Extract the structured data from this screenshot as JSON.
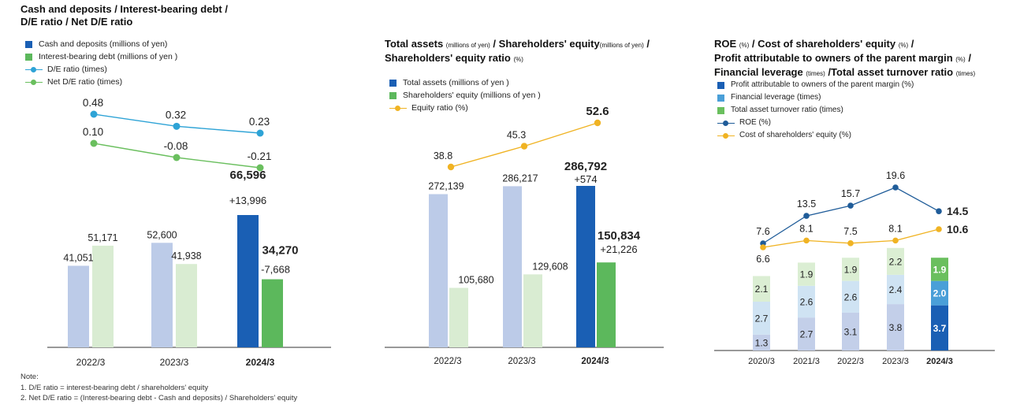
{
  "panel1": {
    "title_lines": [
      "Cash and deposits / Interest-bearing debt /",
      "D/E ratio / Net D/E ratio"
    ],
    "legend": [
      {
        "label": "Cash and deposits (millions of yen)",
        "kind": "bar",
        "color": "#1a5fb4"
      },
      {
        "label": "Interest-bearing debt (millions of yen )",
        "kind": "bar",
        "color": "#5cb85c"
      },
      {
        "label": "D/E ratio (times)",
        "kind": "line",
        "color": "#2ea3d6"
      },
      {
        "label": "Net D/E ratio (times)",
        "kind": "line",
        "color": "#6abf5e"
      }
    ],
    "notes": [
      "Note:",
      "1. D/E ratio = interest-bearing debt / shareholders' equity",
      "2. Net D/E ratio = (Interest-bearing debt - Cash and deposits) / Shareholders' equity"
    ]
  },
  "panel2": {
    "title_lines": [
      {
        "main": "Total assets ",
        "small": "(millions of yen)",
        "main2": " / Shareholders' equity",
        "small2": "(millions of yen)",
        "main3": " /"
      },
      {
        "main": "Shareholders' equity ratio ",
        "small": "(%)"
      }
    ],
    "legend": [
      {
        "label": "Total assets (millions of yen )",
        "kind": "bar",
        "color": "#1a5fb4"
      },
      {
        "label": "Shareholders' equity (millions of yen )",
        "kind": "bar",
        "color": "#5cb85c"
      },
      {
        "label": "Equity ratio (%)",
        "kind": "line",
        "color": "#f0b323"
      }
    ]
  },
  "panel3": {
    "title_lines": [
      {
        "main": "ROE ",
        "small": "(%)",
        "main2": " / Cost of shareholders' equity ",
        "small2": "(%)",
        "main3": " /"
      },
      {
        "main": "Profit attributable to owners of the parent margin ",
        "small": "(%)",
        "main2": " /"
      },
      {
        "main": "Financial leverage ",
        "small": "(times)",
        "main2": " /Total asset turnover ratio ",
        "small2": "(times)"
      }
    ],
    "legend": [
      {
        "label": "Profit attributable to owners of the parent margin (%)",
        "kind": "bar",
        "color": "#1a5fb4"
      },
      {
        "label": "Financial leverage (times)",
        "kind": "bar",
        "color": "#4a9fd8"
      },
      {
        "label": "Total asset turnover ratio (times)",
        "kind": "bar",
        "color": "#6abf5e"
      },
      {
        "label": "ROE (%)",
        "kind": "line",
        "color": "#1f5c99"
      },
      {
        "label": "Cost of shareholders' equity (%)",
        "kind": "line",
        "color": "#f0b323"
      }
    ]
  },
  "chart_data": [
    {
      "type": "bar",
      "categories": [
        "2022/3",
        "2023/3",
        "2024/3"
      ],
      "series": [
        {
          "name": "Cash and deposits (millions of yen)",
          "values": [
            41051,
            52600,
            66596
          ],
          "labels": [
            "41,051",
            "52,600",
            "66,596"
          ],
          "delta": [
            null,
            null,
            "+13,996"
          ]
        },
        {
          "name": "Interest-bearing debt (millions of yen )",
          "values": [
            51171,
            41938,
            34270
          ],
          "labels": [
            "51,171",
            "41,938",
            "34,270"
          ],
          "delta": [
            null,
            null,
            "-7,668"
          ]
        }
      ],
      "lines": [
        {
          "name": "D/E ratio (times)",
          "values": [
            0.48,
            0.32,
            0.23
          ],
          "labels": [
            "0.48",
            "0.32",
            "0.23"
          ]
        },
        {
          "name": "Net D/E ratio (times)",
          "values": [
            0.1,
            -0.08,
            -0.21
          ],
          "labels": [
            "0.10",
            "-0.08",
            "-0.21"
          ]
        }
      ]
    },
    {
      "type": "bar",
      "categories": [
        "2022/3",
        "2023/3",
        "2024/3"
      ],
      "series": [
        {
          "name": "Total assets (millions of yen )",
          "values": [
            272139,
            286217,
            286792
          ],
          "labels": [
            "272,139",
            "286,217",
            "286,792"
          ],
          "delta": [
            null,
            null,
            "+574"
          ]
        },
        {
          "name": "Shareholders' equity (millions of yen )",
          "values": [
            105680,
            129608,
            150834
          ],
          "labels": [
            "105,680",
            "129,608",
            "150,834"
          ],
          "delta": [
            null,
            null,
            "+21,226"
          ]
        }
      ],
      "lines": [
        {
          "name": "Equity ratio (%)",
          "values": [
            38.8,
            45.3,
            52.6
          ],
          "labels": [
            "38.8",
            "45.3",
            "52.6"
          ]
        }
      ]
    },
    {
      "type": "bar",
      "categories": [
        "2020/3",
        "2021/3",
        "2022/3",
        "2023/3",
        "2024/3"
      ],
      "stacked": true,
      "series": [
        {
          "name": "Profit attributable to owners of the parent margin (%)",
          "values": [
            1.3,
            2.7,
            3.1,
            3.8,
            3.7
          ],
          "labels": [
            "1.3",
            "2.7",
            "3.1",
            "3.8",
            "3.7"
          ]
        },
        {
          "name": "Financial leverage (times)",
          "values": [
            2.7,
            2.6,
            2.6,
            2.4,
            2.0
          ],
          "labels": [
            "2.7",
            "2.6",
            "2.6",
            "2.4",
            "2.0"
          ]
        },
        {
          "name": "Total asset turnover ratio (times)",
          "values": [
            2.1,
            1.9,
            1.9,
            2.2,
            1.9
          ],
          "labels": [
            "2.1",
            "1.9",
            "1.9",
            "2.2",
            "1.9"
          ]
        }
      ],
      "lines": [
        {
          "name": "ROE (%)",
          "values": [
            7.6,
            13.5,
            15.7,
            19.6,
            14.5
          ],
          "labels": [
            "7.6",
            "13.5",
            "15.7",
            "19.6",
            "14.5"
          ]
        },
        {
          "name": "Cost of shareholders' equity (%)",
          "values": [
            6.6,
            8.1,
            7.5,
            8.1,
            10.6
          ],
          "labels": [
            "6.6",
            "8.1",
            "7.5",
            "8.1",
            "10.6"
          ]
        }
      ]
    }
  ]
}
